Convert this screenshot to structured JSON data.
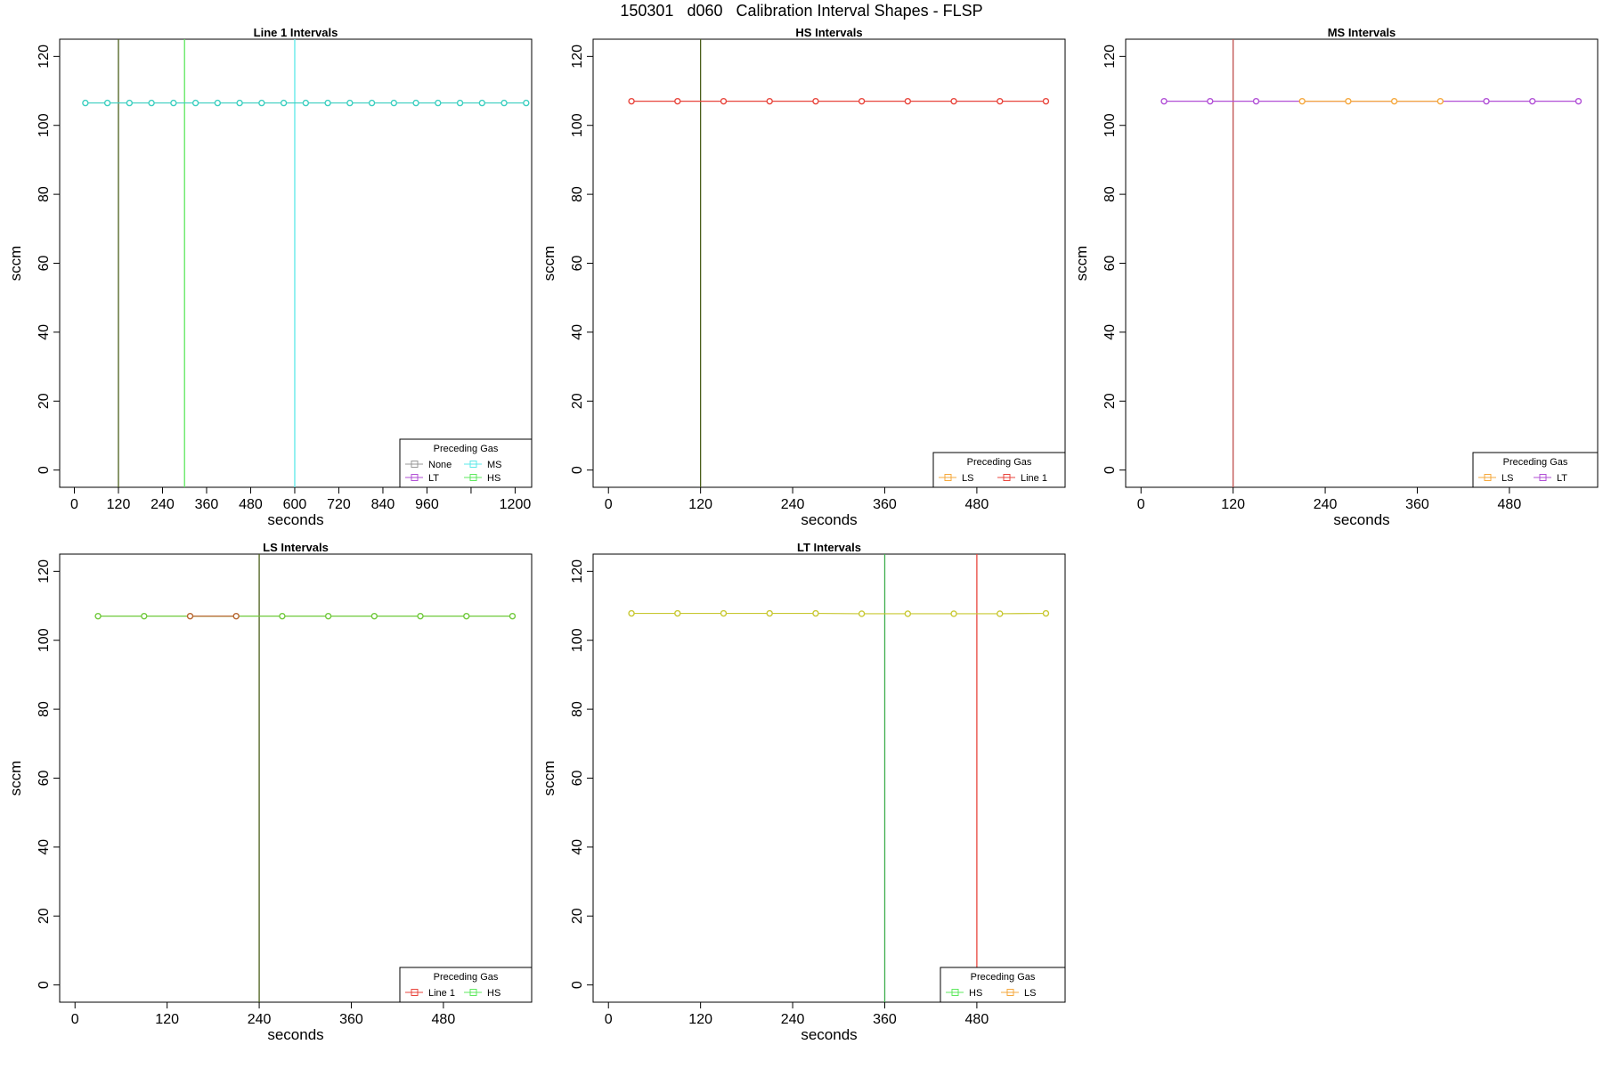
{
  "page": {
    "title": "150301   d060   Calibration Interval Shapes - FLSP"
  },
  "colors": {
    "None": "#999999",
    "LT": "#B14FD6",
    "MS": "#5CE8E8",
    "HS": "#5EE85E",
    "LS": "#F5A83D",
    "Line 1": "#E8453C",
    "frame": "#000000"
  },
  "chart_data": [
    {
      "type": "line",
      "title": "Line 1 Intervals",
      "xlabel": "seconds",
      "ylabel": "sccm",
      "xlim": [
        -40,
        1245
      ],
      "ylim": [
        -5,
        125
      ],
      "xticks": [
        0,
        120,
        240,
        360,
        480,
        600,
        720,
        840,
        960,
        1080,
        1200
      ],
      "xticklabels": [
        "0",
        "120",
        "240",
        "360",
        "480",
        "600",
        "720",
        "840",
        "960",
        "",
        "1200"
      ],
      "yticks": [
        0,
        20,
        40,
        60,
        80,
        100,
        120
      ],
      "legend": {
        "title": "Preceding Gas",
        "position": "bottom-right",
        "columns": 2,
        "entries": [
          "None",
          "LT",
          "MS",
          "HS"
        ]
      },
      "vlines": [
        {
          "x": 120,
          "color": "#4A5E1A"
        },
        {
          "x": 300,
          "color": "#5EE85E"
        },
        {
          "x": 600,
          "color": "#5CE8E8"
        }
      ],
      "series": [
        {
          "name": "MS",
          "color": "#3CCFC0",
          "x": [
            30,
            90,
            150,
            210,
            270,
            330,
            390,
            450,
            510,
            570,
            630,
            690,
            750,
            810,
            870,
            930,
            990,
            1050,
            1110,
            1170,
            1230
          ],
          "y": [
            106.5,
            106.5,
            106.5,
            106.5,
            106.5,
            106.5,
            106.5,
            106.5,
            106.5,
            106.5,
            106.5,
            106.5,
            106.5,
            106.5,
            106.5,
            106.5,
            106.5,
            106.5,
            106.5,
            106.5,
            106.5
          ]
        }
      ]
    },
    {
      "type": "line",
      "title": "HS Intervals",
      "xlabel": "seconds",
      "ylabel": "sccm",
      "xlim": [
        -20,
        595
      ],
      "ylim": [
        -5,
        125
      ],
      "xticks": [
        0,
        120,
        240,
        360,
        480
      ],
      "xticklabels": [
        "0",
        "120",
        "240",
        "360",
        "480"
      ],
      "yticks": [
        0,
        20,
        40,
        60,
        80,
        100,
        120
      ],
      "legend": {
        "title": "Preceding Gas",
        "position": "bottom-right",
        "columns": 2,
        "entries": [
          "LS",
          "Line 1"
        ]
      },
      "vlines": [
        {
          "x": 120,
          "color": "#4A5E1A"
        }
      ],
      "series": [
        {
          "name": "Line 1",
          "color": "#E8453C",
          "x": [
            30,
            90,
            150,
            210,
            270,
            330,
            390,
            450,
            510,
            570
          ],
          "y": [
            107,
            107,
            107,
            107,
            107,
            107,
            107,
            107,
            107,
            107
          ]
        }
      ]
    },
    {
      "type": "line",
      "title": "MS Intervals",
      "xlabel": "seconds",
      "ylabel": "sccm",
      "xlim": [
        -20,
        595
      ],
      "ylim": [
        -5,
        125
      ],
      "xticks": [
        0,
        120,
        240,
        360,
        480
      ],
      "xticklabels": [
        "0",
        "120",
        "240",
        "360",
        "480"
      ],
      "yticks": [
        0,
        20,
        40,
        60,
        80,
        100,
        120
      ],
      "legend": {
        "title": "Preceding Gas",
        "position": "bottom-right",
        "columns": 2,
        "entries": [
          "LS",
          "LT"
        ]
      },
      "vlines": [
        {
          "x": 120,
          "color": "#C0504D"
        }
      ],
      "series": [
        {
          "name": "LT",
          "color": "#B14FD6",
          "x": [
            30,
            90,
            150,
            450,
            510,
            570
          ],
          "y": [
            107,
            107,
            107,
            107,
            107,
            107
          ]
        },
        {
          "name": "LS",
          "color": "#F5A83D",
          "x": [
            210,
            270,
            330,
            390
          ],
          "y": [
            107,
            107,
            107,
            107
          ]
        }
      ]
    },
    {
      "type": "line",
      "title": "LS Intervals",
      "xlabel": "seconds",
      "ylabel": "sccm",
      "xlim": [
        -20,
        595
      ],
      "ylim": [
        -5,
        125
      ],
      "xticks": [
        0,
        120,
        240,
        360,
        480
      ],
      "xticklabels": [
        "0",
        "120",
        "240",
        "360",
        "480"
      ],
      "yticks": [
        0,
        20,
        40,
        60,
        80,
        100,
        120
      ],
      "legend": {
        "title": "Preceding Gas",
        "position": "bottom-right",
        "columns": 2,
        "entries": [
          "Line 1",
          "HS"
        ]
      },
      "vlines": [
        {
          "x": 240,
          "color": "#4A5E1A"
        }
      ],
      "series": [
        {
          "name": "HS",
          "color": "#6FC93A",
          "x": [
            30,
            90,
            270,
            330,
            390,
            450,
            510,
            570
          ],
          "y": [
            107,
            107,
            107,
            107,
            107,
            107,
            107,
            107
          ]
        },
        {
          "name": "Line 1",
          "color": "#B7642E",
          "x": [
            150,
            210
          ],
          "y": [
            107,
            107
          ]
        }
      ]
    },
    {
      "type": "line",
      "title": "LT Intervals",
      "xlabel": "seconds",
      "ylabel": "sccm",
      "xlim": [
        -20,
        595
      ],
      "ylim": [
        -5,
        125
      ],
      "xticks": [
        0,
        120,
        240,
        360,
        480
      ],
      "xticklabels": [
        "0",
        "120",
        "240",
        "360",
        "480"
      ],
      "yticks": [
        0,
        20,
        40,
        60,
        80,
        100,
        120
      ],
      "legend": {
        "title": "Preceding Gas",
        "position": "bottom-right",
        "columns": 2,
        "entries": [
          "HS",
          "LS"
        ]
      },
      "vlines": [
        {
          "x": 360,
          "color": "#3FAE4F"
        },
        {
          "x": 480,
          "color": "#E8453C"
        }
      ],
      "series": [
        {
          "name": "LS",
          "color": "#C8C832",
          "x": [
            30,
            90,
            150,
            210,
            270,
            330,
            390,
            450,
            510,
            570
          ],
          "y": [
            107.8,
            107.8,
            107.8,
            107.8,
            107.8,
            107.7,
            107.7,
            107.7,
            107.7,
            107.8
          ]
        }
      ]
    }
  ]
}
